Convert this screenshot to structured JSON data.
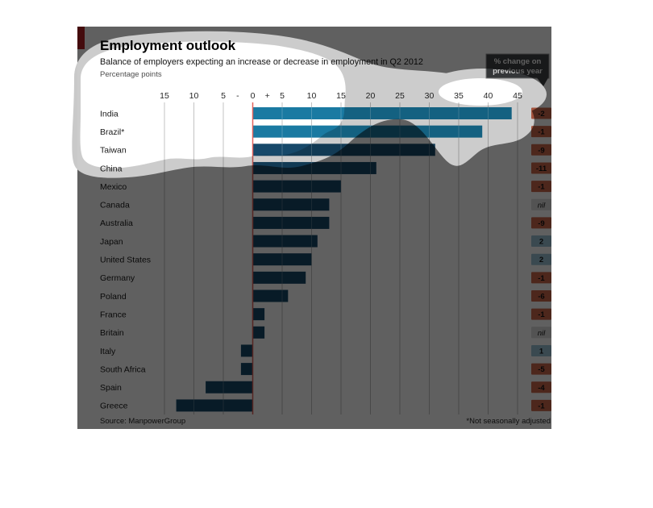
{
  "chart": {
    "title": "Employment outlook",
    "subtitle": "Balance of employers expecting an increase or decrease in employment in Q2 2012",
    "unit_label": "Percentage points",
    "callout_badge": {
      "line1": "% change on",
      "line2": "previous year"
    },
    "source": "Source: ManpowerGroup",
    "footnote": "*Not seasonally adjusted"
  },
  "chart_data": {
    "type": "bar",
    "orientation": "horizontal",
    "title": "Employment outlook",
    "subtitle": "Balance of employers expecting an increase or decrease in employment in Q2 2012",
    "xlabel": "Percentage points",
    "xlim": [
      -15,
      45
    ],
    "grid": "vertical",
    "categories": [
      "India",
      "Brazil*",
      "Taiwan",
      "China",
      "Mexico",
      "Canada",
      "Australia",
      "Japan",
      "United States",
      "Germany",
      "Poland",
      "France",
      "Britain",
      "Italy",
      "South Africa",
      "Spain",
      "Greece"
    ],
    "values": [
      44,
      39,
      31,
      21,
      15,
      13,
      13,
      11,
      10,
      9,
      6,
      2,
      2,
      -2,
      -2,
      -8,
      -13
    ],
    "change_on_previous_year": [
      "-2",
      "-1",
      "-9",
      "-11",
      "-1",
      "nil",
      "-9",
      "2",
      "2",
      "-1",
      "-6",
      "-1",
      "nil",
      "1",
      "-5",
      "-4",
      "-1"
    ],
    "highlighted_categories": [
      "India",
      "Brazil*"
    ],
    "axis": {
      "tick_values": [
        -15,
        -10,
        -5,
        -2.55,
        0,
        2.5,
        5,
        10,
        15,
        20,
        25,
        30,
        35,
        40,
        45
      ],
      "tick_labels": [
        "15",
        "10",
        "5",
        "-",
        "0",
        "+",
        "5",
        "10",
        "15",
        "20",
        "25",
        "30",
        "35",
        "40",
        "45"
      ],
      "gridline_values": [
        -15,
        -10,
        -5,
        5,
        10,
        15,
        20,
        25,
        30,
        35,
        40,
        45
      ]
    }
  },
  "colors": {
    "accent_tab_red": "#b41f24",
    "bar_navy": "#17496a",
    "bar_highlight_blue": "#1a7aa2",
    "zero_line_red": "#e2635c",
    "gridline_gray": "#b3b3b3",
    "badge_negative_bg": "#cd684d",
    "badge_positive_bg": "#9cc3d6",
    "badge_nil_bg": "#dcdcdc",
    "badge_text": "#141414",
    "callout_bg": "#424446",
    "callout_border": "#979797",
    "callout_text": "#ffffff",
    "title_text": "#000000",
    "subtitle_text": "#141414",
    "unit_text": "#4d4d4d",
    "label_text": "#1a1a1a",
    "tick_text": "#262626",
    "footer_text": "#262626",
    "cloud_band_gray": "#c9c9c9"
  }
}
